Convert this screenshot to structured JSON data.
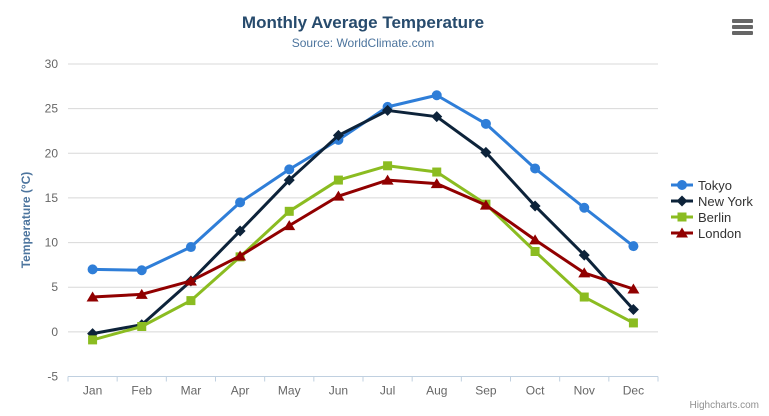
{
  "chart": {
    "title": "Monthly Average Temperature",
    "subtitle": "Source: WorldClimate.com",
    "y_axis_title": "Temperature (°C)",
    "credits": "Highcharts.com"
  },
  "colors": {
    "title": "#274b6d",
    "subtitle": "#4d759e",
    "axis_title": "#4d759e",
    "axis_labels": "#666666",
    "gridline": "#d8d8d8",
    "axis_line": "#c0d0e0",
    "legend_text": "#333333",
    "credits_text": "#909090",
    "menu_icon": "#666666",
    "background": "#ffffff",
    "tokyo": "#2f7ed8",
    "new_york": "#0d233a",
    "berlin": "#8bbc21",
    "london": "#910000"
  },
  "chart_data": {
    "type": "line",
    "title": "Monthly Average Temperature",
    "subtitle": "Source: WorldClimate.com",
    "xlabel": "",
    "ylabel": "Temperature (°C)",
    "categories": [
      "Jan",
      "Feb",
      "Mar",
      "Apr",
      "May",
      "Jun",
      "Jul",
      "Aug",
      "Sep",
      "Oct",
      "Nov",
      "Dec"
    ],
    "yticks": [
      -5,
      0,
      5,
      10,
      15,
      20,
      25,
      30
    ],
    "ylim": [
      -5,
      30
    ],
    "grid": "horizontal",
    "legend_position": "right",
    "series": [
      {
        "name": "Tokyo",
        "color": "#2f7ed8",
        "marker": "circle",
        "values": [
          7.0,
          6.9,
          9.5,
          14.5,
          18.2,
          21.5,
          25.2,
          26.5,
          23.3,
          18.3,
          13.9,
          9.6
        ]
      },
      {
        "name": "New York",
        "color": "#0d233a",
        "marker": "diamond",
        "values": [
          -0.2,
          0.8,
          5.7,
          11.3,
          17.0,
          22.0,
          24.8,
          24.1,
          20.1,
          14.1,
          8.6,
          2.5
        ]
      },
      {
        "name": "Berlin",
        "color": "#8bbc21",
        "marker": "square",
        "values": [
          -0.9,
          0.6,
          3.5,
          8.4,
          13.5,
          17.0,
          18.6,
          17.9,
          14.3,
          9.0,
          3.9,
          1.0
        ]
      },
      {
        "name": "London",
        "color": "#910000",
        "marker": "triangle",
        "values": [
          3.9,
          4.2,
          5.7,
          8.5,
          11.9,
          15.2,
          17.0,
          16.6,
          14.2,
          10.3,
          6.6,
          4.8
        ]
      }
    ]
  }
}
